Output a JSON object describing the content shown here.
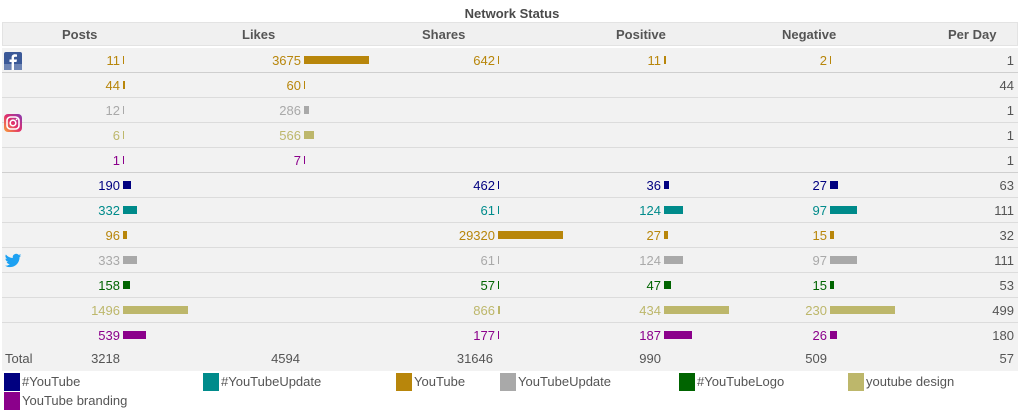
{
  "title": "Network Status",
  "columns": [
    "Posts",
    "Likes",
    "Shares",
    "Positive",
    "Negative",
    "Per Day"
  ],
  "series": [
    {
      "name": "#YouTube",
      "color": "#000080"
    },
    {
      "name": "#YouTubeUpdate",
      "color": "#008b8b"
    },
    {
      "name": "YouTube",
      "color": "#b8860b"
    },
    {
      "name": "YouTubeUpdate",
      "color": "#a9a9a9"
    },
    {
      "name": "#YouTubeLogo",
      "color": "#006400"
    },
    {
      "name": "youtube design",
      "color": "#bdb76b"
    },
    {
      "name": "YouTube branding",
      "color": "#8b008b"
    }
  ],
  "chart_data": {
    "type": "table",
    "title": "Network Status",
    "columns": [
      "Posts",
      "Likes",
      "Shares",
      "Positive",
      "Negative",
      "Per Day"
    ],
    "networks": [
      {
        "network": "facebook",
        "icon": "facebook-icon",
        "rows": [
          {
            "series": "YouTube",
            "values": [
              "11",
              "3675",
              "642",
              "11",
              "2",
              "1"
            ]
          }
        ]
      },
      {
        "network": "instagram",
        "icon": "instagram-icon",
        "rows": [
          {
            "series": "YouTube",
            "values": [
              "44",
              "60",
              "",
              "",
              "",
              "44"
            ]
          },
          {
            "series": "YouTubeUpdate",
            "values": [
              "12",
              "286",
              "",
              "",
              "",
              "1"
            ]
          },
          {
            "series": "youtube design",
            "values": [
              "6",
              "566",
              "",
              "",
              "",
              "1"
            ]
          },
          {
            "series": "YouTube branding",
            "values": [
              "1",
              "7",
              "",
              "",
              "",
              "1"
            ]
          }
        ]
      },
      {
        "network": "twitter",
        "icon": "twitter-icon",
        "rows": [
          {
            "series": "#YouTube",
            "values": [
              "190",
              "",
              "462",
              "36",
              "27",
              "63"
            ]
          },
          {
            "series": "#YouTubeUpdate",
            "values": [
              "332",
              "",
              "61",
              "124",
              "97",
              "111"
            ]
          },
          {
            "series": "YouTube",
            "values": [
              "96",
              "",
              "29320",
              "27",
              "15",
              "32"
            ]
          },
          {
            "series": "YouTubeUpdate",
            "values": [
              "333",
              "",
              "61",
              "124",
              "97",
              "111"
            ]
          },
          {
            "series": "#YouTubeLogo",
            "values": [
              "158",
              "",
              "57",
              "47",
              "15",
              "53"
            ]
          },
          {
            "series": "youtube design",
            "values": [
              "1496",
              "",
              "866",
              "434",
              "230",
              "499"
            ]
          },
          {
            "series": "YouTube branding",
            "values": [
              "539",
              "",
              "177",
              "187",
              "26",
              "180"
            ]
          }
        ]
      }
    ],
    "total": {
      "label": "Total",
      "values": [
        "3218",
        "4594",
        "31646",
        "990",
        "509",
        "57"
      ]
    }
  }
}
